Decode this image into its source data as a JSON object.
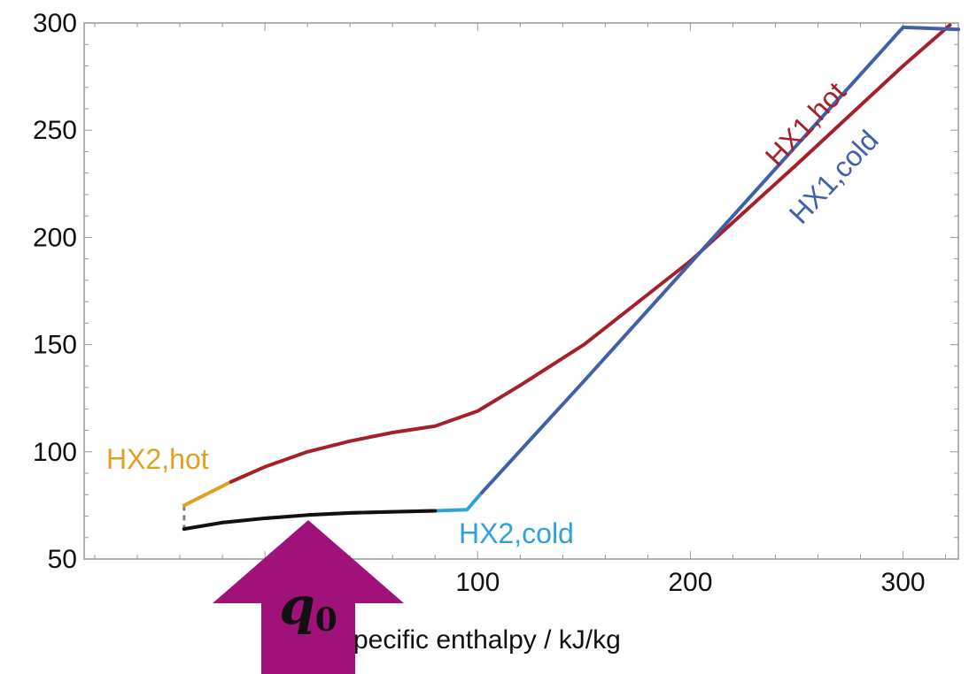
{
  "chart_data": {
    "type": "line",
    "title": "",
    "xlabel": "pecific enthalpy / kJ/kg",
    "ylabel": "",
    "xlim": [
      -85,
      326
    ],
    "ylim": [
      50,
      300
    ],
    "x_ticks": [
      100,
      200,
      300
    ],
    "y_ticks": [
      50,
      100,
      150,
      200,
      250,
      300
    ],
    "grid": false,
    "series": [
      {
        "name": "HX2,hot",
        "color": "#e0a020",
        "x": [
          -38,
          -16
        ],
        "y": [
          75,
          86
        ]
      },
      {
        "name": "HX1,hot",
        "color": "#a52028",
        "x": [
          -16,
          0,
          20,
          40,
          60,
          80,
          90,
          100,
          120,
          150,
          200,
          250,
          300,
          322
        ],
        "y": [
          86,
          93,
          100,
          105,
          109,
          112,
          115.5,
          119,
          131,
          150,
          189,
          234,
          280,
          299
        ]
      },
      {
        "name": "HX2,cold",
        "color": "#30a0dc",
        "x": [
          -38,
          -20,
          0,
          20,
          40,
          60,
          80,
          95,
          102
        ],
        "y": [
          64,
          67,
          69,
          70.5,
          71.5,
          72,
          72.5,
          73,
          81
        ]
      },
      {
        "name": "HX1,cold",
        "color": "#4060aa",
        "x": [
          102,
          150,
          200,
          250,
          300,
          326
        ],
        "y": [
          81,
          133,
          188,
          243,
          298,
          297
        ]
      }
    ],
    "annotations": [
      {
        "text": "HX2,hot",
        "color": "#e0a020"
      },
      {
        "text": "HX2,cold",
        "color": "#30a0dc"
      },
      {
        "text": "HX1,hot",
        "color": "#a52028"
      },
      {
        "text": "HX1,cold",
        "color": "#4060aa"
      }
    ],
    "arrow": {
      "label": "q",
      "subscript": "0",
      "color": "#a0127a"
    }
  }
}
